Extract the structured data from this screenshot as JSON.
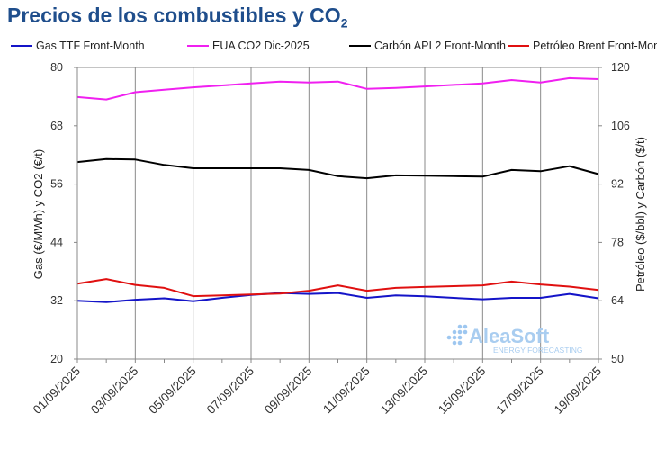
{
  "title": "Precios de los combustibles y CO",
  "title_sub": "2",
  "watermark": {
    "name": "AleaSoft",
    "tagline": "ENERGY FORECASTING"
  },
  "chart_data": {
    "type": "line",
    "categories": [
      "01/09/2025",
      "02/09/2025",
      "03/09/2025",
      "04/09/2025",
      "05/09/2025",
      "06/09/2025",
      "07/09/2025",
      "08/09/2025",
      "09/09/2025",
      "10/09/2025",
      "11/09/2025",
      "12/09/2025",
      "13/09/2025",
      "14/09/2025",
      "15/09/2025",
      "16/09/2025",
      "17/09/2025",
      "18/09/2025",
      "19/09/2025"
    ],
    "x_tick_labels": [
      "01/09/2025",
      "03/09/2025",
      "05/09/2025",
      "07/09/2025",
      "09/09/2025",
      "11/09/2025",
      "13/09/2025",
      "15/09/2025",
      "17/09/2025",
      "19/09/2025"
    ],
    "ylabel_left": "Gas (€/MWh) y CO2 (€/t)",
    "ylabel_right": "Petróleo ($/bbl) y Carbón ($/t)",
    "ylim_left": [
      20,
      80
    ],
    "ylim_right": [
      50,
      120
    ],
    "yticks_left": [
      20,
      32,
      44,
      56,
      68,
      80
    ],
    "yticks_right": [
      50,
      64,
      78,
      92,
      106,
      120
    ],
    "grid": "vertical",
    "legend_position": "top",
    "series": [
      {
        "name": "Gas TTF Front-Month",
        "axis": "left",
        "color": "#1414c8",
        "values": [
          32.0,
          31.7,
          32.2,
          32.5,
          31.9,
          32.6,
          33.2,
          33.6,
          33.4,
          33.6,
          32.6,
          33.1,
          32.9,
          32.6,
          32.3,
          32.6,
          32.6,
          33.4,
          32.5
        ]
      },
      {
        "name": "EUA CO2 Dic-2025",
        "axis": "left",
        "color": "#f020f0",
        "values": [
          73.9,
          73.4,
          74.9,
          75.4,
          75.9,
          76.3,
          76.7,
          77.1,
          76.9,
          77.1,
          75.6,
          75.8,
          76.1,
          76.4,
          76.7,
          77.4,
          76.9,
          77.8,
          77.6
        ]
      },
      {
        "name": "Carbón API 2 Front-Month",
        "axis": "right",
        "color": "#000000",
        "values": [
          97.3,
          98.0,
          97.9,
          96.6,
          95.8,
          95.8,
          95.8,
          95.8,
          95.4,
          93.9,
          93.4,
          94.1,
          94.0,
          93.9,
          93.8,
          95.4,
          95.1,
          96.3,
          94.4
        ]
      },
      {
        "name": "Petróleo Brent Front-Month",
        "axis": "right",
        "color": "#e01010",
        "values": [
          68.1,
          69.2,
          67.8,
          67.1,
          65.1,
          65.3,
          65.5,
          65.7,
          66.4,
          67.7,
          66.4,
          67.1,
          67.3,
          67.5,
          67.7,
          68.6,
          67.9,
          67.4,
          66.6
        ]
      }
    ]
  }
}
